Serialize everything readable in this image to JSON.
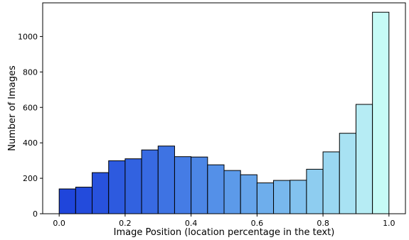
{
  "chart_data": {
    "type": "bar",
    "subtype": "histogram",
    "title": "",
    "xlabel": "Image Position (location percentage in the text)",
    "ylabel": "Number of Images",
    "xlim": [
      -0.05,
      1.05
    ],
    "ylim": [
      0,
      1190
    ],
    "grid": false,
    "legend": "none",
    "bin_width": 0.05,
    "bins": [
      {
        "start": 0.0,
        "end": 0.05,
        "value": 140,
        "color": "#1f45db"
      },
      {
        "start": 0.05,
        "end": 0.1,
        "value": 150,
        "color": "#234bdc"
      },
      {
        "start": 0.1,
        "end": 0.15,
        "value": 232,
        "color": "#2852dd"
      },
      {
        "start": 0.15,
        "end": 0.2,
        "value": 299,
        "color": "#2d5adf"
      },
      {
        "start": 0.2,
        "end": 0.25,
        "value": 310,
        "color": "#3262e0"
      },
      {
        "start": 0.25,
        "end": 0.3,
        "value": 360,
        "color": "#386ae2"
      },
      {
        "start": 0.3,
        "end": 0.35,
        "value": 382,
        "color": "#3e73e3"
      },
      {
        "start": 0.35,
        "end": 0.4,
        "value": 322,
        "color": "#457ce5"
      },
      {
        "start": 0.4,
        "end": 0.45,
        "value": 320,
        "color": "#4c86e6"
      },
      {
        "start": 0.45,
        "end": 0.5,
        "value": 276,
        "color": "#5490e8"
      },
      {
        "start": 0.5,
        "end": 0.55,
        "value": 244,
        "color": "#5c9ae9"
      },
      {
        "start": 0.55,
        "end": 0.6,
        "value": 220,
        "color": "#65a4eb"
      },
      {
        "start": 0.6,
        "end": 0.65,
        "value": 174,
        "color": "#6eaeec"
      },
      {
        "start": 0.65,
        "end": 0.7,
        "value": 188,
        "color": "#78b8ee"
      },
      {
        "start": 0.7,
        "end": 0.75,
        "value": 189,
        "color": "#82c2ef"
      },
      {
        "start": 0.75,
        "end": 0.8,
        "value": 251,
        "color": "#8ecdf0"
      },
      {
        "start": 0.8,
        "end": 0.85,
        "value": 349,
        "color": "#9ad7f1"
      },
      {
        "start": 0.85,
        "end": 0.9,
        "value": 454,
        "color": "#a8e2f3"
      },
      {
        "start": 0.9,
        "end": 0.95,
        "value": 617,
        "color": "#b6ecf4"
      },
      {
        "start": 0.95,
        "end": 1.0,
        "value": 1137,
        "color": "#c6fbf6"
      }
    ],
    "x_ticks": [
      {
        "value": 0.0,
        "label": "0.0"
      },
      {
        "value": 0.2,
        "label": "0.2"
      },
      {
        "value": 0.4,
        "label": "0.4"
      },
      {
        "value": 0.6,
        "label": "0.6"
      },
      {
        "value": 0.8,
        "label": "0.8"
      },
      {
        "value": 1.0,
        "label": "1.0"
      }
    ],
    "y_ticks": [
      {
        "value": 0,
        "label": "0"
      },
      {
        "value": 200,
        "label": "200"
      },
      {
        "value": 400,
        "label": "400"
      },
      {
        "value": 600,
        "label": "600"
      },
      {
        "value": 800,
        "label": "800"
      },
      {
        "value": 1000,
        "label": "1000"
      }
    ]
  }
}
